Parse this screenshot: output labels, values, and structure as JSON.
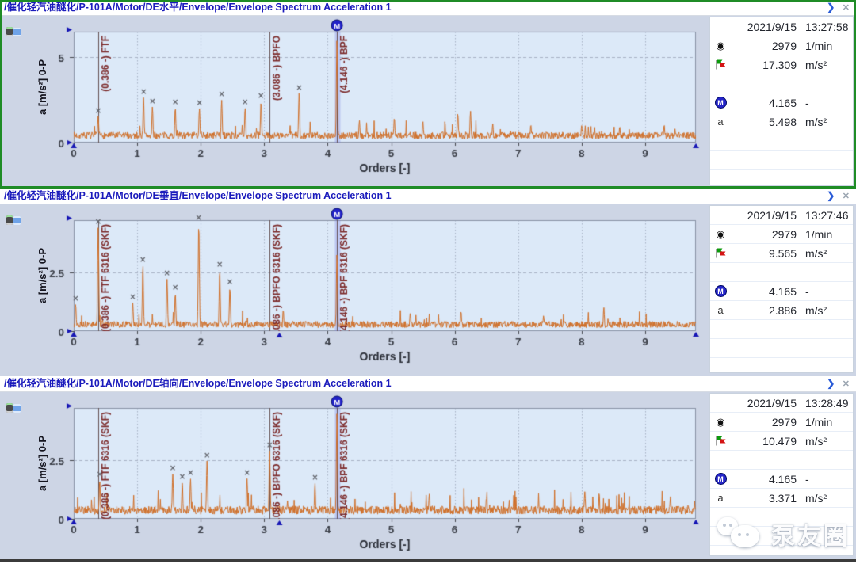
{
  "controls": {
    "expand_icon": "❯",
    "close_icon": "✕"
  },
  "watermark": {
    "text": "泵友圈",
    "icon": "chat-bubbles-icon"
  },
  "panels": [
    {
      "title": "/催化轻汽油醚化/P-101A/Motor/DE水平/Envelope/Envelope Spectrum Acceleration 1",
      "selected": true,
      "ylabel": "a [m/s²] 0-P",
      "xlabel": "Orders [-]",
      "info": {
        "date": "2021/9/15",
        "time": "13:27:58",
        "rows": [
          {
            "icon": "speed-icon",
            "value": "2979",
            "unit": "1/min"
          },
          {
            "icon": "flag-icon",
            "value": "17.309",
            "unit": "m/s²"
          },
          {
            "icon": "square-icon",
            "value": "",
            "unit": ""
          },
          {
            "icon": "marker-m-icon",
            "value": "4.165",
            "unit": "-"
          },
          {
            "icon": "amplitude-icon",
            "value": "5.498",
            "unit": "m/s²"
          }
        ]
      }
    },
    {
      "title": "/催化轻汽油醚化/P-101A/Motor/DE垂直/Envelope/Envelope Spectrum Acceleration 1",
      "selected": false,
      "ylabel": "a [m/s²] 0-P",
      "xlabel": "Orders [-]",
      "info": {
        "date": "2021/9/15",
        "time": "13:27:46",
        "rows": [
          {
            "icon": "speed-icon",
            "value": "2979",
            "unit": "1/min"
          },
          {
            "icon": "flag-icon",
            "value": "9.565",
            "unit": "m/s²"
          },
          {
            "icon": "square-icon",
            "value": "",
            "unit": ""
          },
          {
            "icon": "marker-m-icon",
            "value": "4.165",
            "unit": "-"
          },
          {
            "icon": "amplitude-icon",
            "value": "2.886",
            "unit": "m/s²"
          }
        ]
      }
    },
    {
      "title": "/催化轻汽油醚化/P-101A/Motor/DE轴向/Envelope/Envelope Spectrum Acceleration 1",
      "selected": false,
      "ylabel": "a [m/s²] 0-P",
      "xlabel": "Orders [-]",
      "info": {
        "date": "2021/9/15",
        "time": "13:28:49",
        "rows": [
          {
            "icon": "speed-icon",
            "value": "2979",
            "unit": "1/min"
          },
          {
            "icon": "flag-icon",
            "value": "10.479",
            "unit": "m/s²"
          },
          {
            "icon": "square-icon",
            "value": "",
            "unit": ""
          },
          {
            "icon": "marker-m-icon",
            "value": "4.165",
            "unit": "-"
          },
          {
            "icon": "amplitude-icon",
            "value": "3.371",
            "unit": "m/s²"
          }
        ]
      }
    }
  ],
  "chart_data": [
    {
      "type": "line",
      "title": "Envelope Spectrum Acceleration 1 (DE水平)",
      "xlabel": "Orders [-]",
      "ylabel": "a [m/s²] 0-P",
      "x_range": [
        0,
        9.8
      ],
      "y_range": [
        0,
        6.5
      ],
      "xticks": [
        0,
        1,
        2,
        3,
        4,
        5,
        6,
        7,
        8,
        9
      ],
      "yticks": [
        {
          "v": 0,
          "label": "0"
        },
        {
          "v": 5,
          "label": "5"
        }
      ],
      "grid": true,
      "trace_color": "#d06f28",
      "noise": {
        "seed": 7,
        "floor": 0.62,
        "bump_prob": 0.035,
        "bump_amp": 0.8
      },
      "peaks": [
        {
          "x": 0.386,
          "y": 1.55,
          "marked": true
        },
        {
          "x": 1.1,
          "y": 2.65,
          "marked": true
        },
        {
          "x": 1.24,
          "y": 2.1,
          "marked": true
        },
        {
          "x": 1.6,
          "y": 2.05,
          "marked": true
        },
        {
          "x": 1.98,
          "y": 2.0,
          "marked": true
        },
        {
          "x": 2.33,
          "y": 2.5,
          "marked": true
        },
        {
          "x": 2.7,
          "y": 2.05,
          "marked": true
        },
        {
          "x": 2.95,
          "y": 2.4,
          "marked": true
        },
        {
          "x": 3.55,
          "y": 2.9,
          "marked": true
        },
        {
          "x": 4.146,
          "y": 6.1
        },
        {
          "x": 4.5,
          "y": 1.3
        },
        {
          "x": 5.05,
          "y": 1.45
        },
        {
          "x": 5.5,
          "y": 1.25
        },
        {
          "x": 6.05,
          "y": 1.7
        },
        {
          "x": 6.25,
          "y": 1.85
        },
        {
          "x": 6.6,
          "y": 1.1
        },
        {
          "x": 7.2,
          "y": 1.05
        },
        {
          "x": 8.0,
          "y": 1.0
        },
        {
          "x": 8.6,
          "y": 0.95
        },
        {
          "x": 9.3,
          "y": 1.05
        }
      ],
      "markers": [
        {
          "x": 0.386,
          "label": "(0.386 -) FTF"
        },
        {
          "x": 3.086,
          "label": "(3.086 -) BPFO"
        },
        {
          "x": 4.146,
          "label": "(4.146 -) BPF",
          "m": true
        }
      ],
      "cursor_triangle_x": null
    },
    {
      "type": "line",
      "title": "Envelope Spectrum Acceleration 1 (DE垂直)",
      "xlabel": "Orders [-]",
      "ylabel": "a [m/s²] 0-P",
      "x_range": [
        0,
        9.8
      ],
      "y_range": [
        0,
        4.7
      ],
      "xticks": [
        0,
        1,
        2,
        3,
        4,
        5,
        6,
        7,
        8,
        9
      ],
      "yticks": [
        {
          "v": 0,
          "label": "0"
        },
        {
          "v": 2.5,
          "label": "2.5"
        }
      ],
      "grid": true,
      "trace_color": "#d06f28",
      "noise": {
        "seed": 13,
        "floor": 0.42,
        "bump_prob": 0.03,
        "bump_amp": 0.6
      },
      "peaks": [
        {
          "x": 0.03,
          "y": 1.15,
          "marked": true
        },
        {
          "x": 0.386,
          "y": 4.4,
          "marked": true
        },
        {
          "x": 0.93,
          "y": 1.2,
          "marked": true
        },
        {
          "x": 1.09,
          "y": 2.8,
          "marked": true
        },
        {
          "x": 1.47,
          "y": 2.2,
          "marked": true
        },
        {
          "x": 1.6,
          "y": 1.6,
          "marked": true
        },
        {
          "x": 1.97,
          "y": 4.55,
          "marked": true
        },
        {
          "x": 2.3,
          "y": 2.6,
          "marked": true
        },
        {
          "x": 2.46,
          "y": 1.85,
          "marked": true
        },
        {
          "x": 3.3,
          "y": 0.9
        },
        {
          "x": 4.146,
          "y": 3.3
        },
        {
          "x": 5.3,
          "y": 0.75
        },
        {
          "x": 6.1,
          "y": 0.85
        },
        {
          "x": 7.4,
          "y": 0.65
        },
        {
          "x": 8.35,
          "y": 1.0
        }
      ],
      "markers": [
        {
          "x": 0.386,
          "label": "(0.386 -) FTF 6316 (SKF)"
        },
        {
          "x": 3.086,
          "label": "(3.086 -) BPFO 6316 (SKF)"
        },
        {
          "x": 4.146,
          "label": "(4.146 -) BPF 6316 (SKF)",
          "m": true
        }
      ],
      "cursor_triangle_x": 3.24
    },
    {
      "type": "line",
      "title": "Envelope Spectrum Acceleration 1 (DE轴向)",
      "xlabel": "Orders [-]",
      "ylabel": "a [m/s²] 0-P",
      "x_range": [
        0,
        9.8
      ],
      "y_range": [
        0,
        4.7
      ],
      "xticks": [
        0,
        1,
        2,
        3,
        4,
        5,
        6,
        7,
        8,
        9
      ],
      "yticks": [
        {
          "v": 0,
          "label": "0"
        },
        {
          "v": 2.5,
          "label": "2.5"
        }
      ],
      "grid": true,
      "trace_color": "#d06f28",
      "noise": {
        "seed": 21,
        "floor": 0.55,
        "bump_prob": 0.06,
        "bump_amp": 0.85
      },
      "peaks": [
        {
          "x": 0.41,
          "y": 1.65,
          "marked": true
        },
        {
          "x": 1.56,
          "y": 1.9,
          "marked": true
        },
        {
          "x": 1.71,
          "y": 1.55,
          "marked": true
        },
        {
          "x": 1.84,
          "y": 1.7,
          "marked": true
        },
        {
          "x": 2.1,
          "y": 2.45,
          "marked": true
        },
        {
          "x": 2.73,
          "y": 1.7,
          "marked": true
        },
        {
          "x": 3.086,
          "y": 2.9,
          "marked": true
        },
        {
          "x": 3.8,
          "y": 1.5,
          "marked": true
        },
        {
          "x": 4.146,
          "y": 4.55
        },
        {
          "x": 5.6,
          "y": 1.05
        },
        {
          "x": 6.5,
          "y": 0.9
        },
        {
          "x": 8.05,
          "y": 1.15
        },
        {
          "x": 9.4,
          "y": 0.95
        }
      ],
      "markers": [
        {
          "x": 0.386,
          "label": "(0.386 -) FTF 6316 (SKF)"
        },
        {
          "x": 3.086,
          "label": "(3.086 -) BPFO 6316 (SKF)"
        },
        {
          "x": 4.146,
          "label": "(4.146 -) BPF 6316 (SKF)",
          "m": true
        }
      ],
      "cursor_triangle_x": 3.24
    }
  ]
}
